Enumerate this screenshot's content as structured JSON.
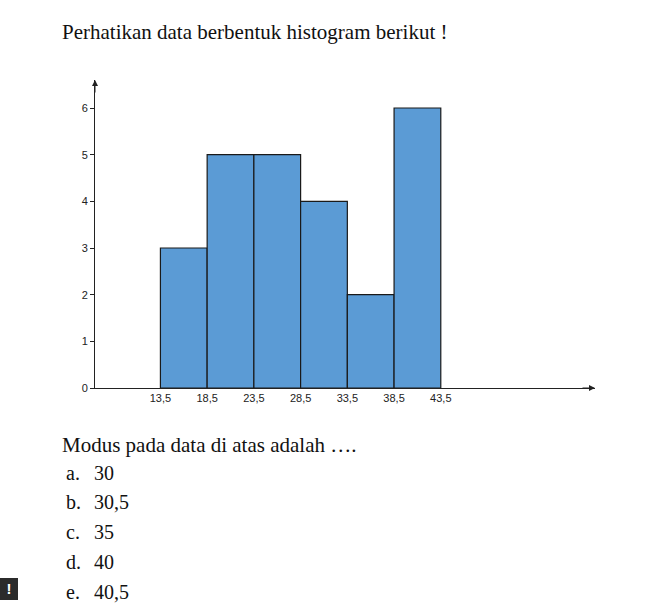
{
  "header": "Perhatikan data berbentuk histogram berikut !",
  "chart_data": {
    "type": "histogram",
    "bins": [
      13.5,
      18.5,
      23.5,
      28.5,
      33.5,
      38.5,
      43.5
    ],
    "values": [
      3,
      5,
      5,
      4,
      2,
      6
    ],
    "color": "#5b9bd5",
    "xlim": [
      6.5,
      60
    ],
    "xticks": [
      {
        "value": 13.5,
        "label": "13,5"
      },
      {
        "value": 18.5,
        "label": "18,5"
      },
      {
        "value": 23.5,
        "label": "23,5"
      },
      {
        "value": 28.5,
        "label": "28,5"
      },
      {
        "value": 33.5,
        "label": "33,5"
      },
      {
        "value": 38.5,
        "label": "38,5"
      },
      {
        "value": 43.5,
        "label": "43,5"
      }
    ],
    "ylim": [
      0,
      6.6
    ],
    "yticks": [
      0,
      1,
      2,
      3,
      4,
      5,
      6
    ],
    "grid": false
  },
  "question": "Modus pada data di atas adalah ….",
  "options": [
    {
      "letter": "a.",
      "text": "30"
    },
    {
      "letter": "b.",
      "text": "30,5"
    },
    {
      "letter": "c.",
      "text": "35"
    },
    {
      "letter": "d.",
      "text": "40"
    },
    {
      "letter": "e.",
      "text": "40,5"
    }
  ],
  "badge": "!"
}
